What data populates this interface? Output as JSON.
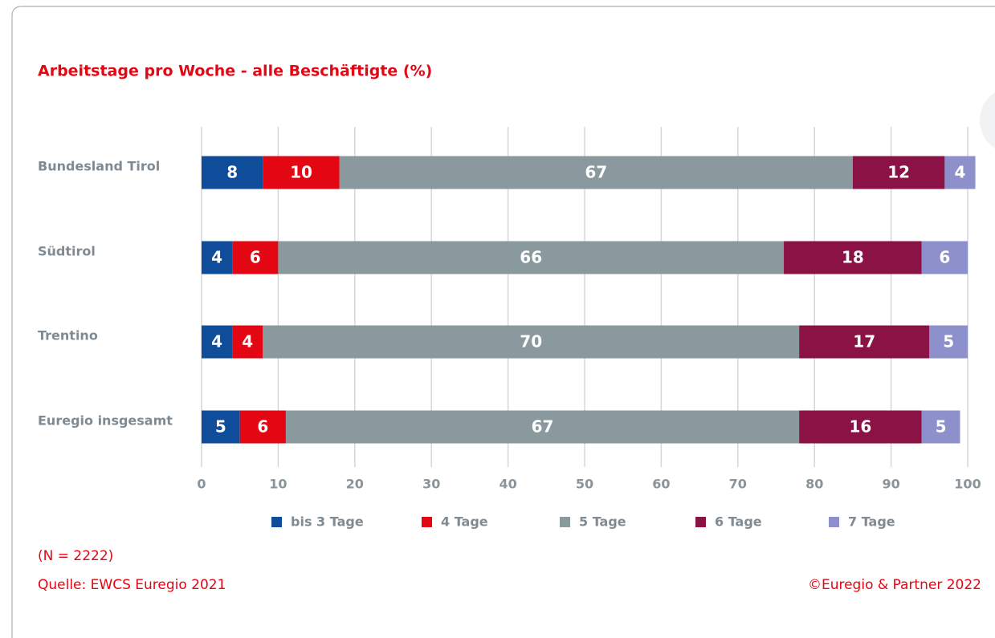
{
  "chart_data": {
    "type": "stacked_bar_horizontal",
    "title": "Arbeitstage pro Woche - alle Beschäftigte (%)",
    "categories": [
      "Bundesland Tirol",
      "Südtirol",
      "Trentino",
      "Euregio insgesamt"
    ],
    "series": [
      {
        "name": "bis 3 Tage",
        "color": "#0f4c9a",
        "values": [
          8,
          4,
          4,
          5
        ]
      },
      {
        "name": "4 Tage",
        "color": "#e30613",
        "values": [
          10,
          6,
          4,
          6
        ]
      },
      {
        "name": "5 Tage",
        "color": "#8a999d",
        "values": [
          67,
          66,
          70,
          67
        ]
      },
      {
        "name": "6 Tage",
        "color": "#8b1245",
        "values": [
          12,
          18,
          17,
          16
        ]
      },
      {
        "name": "7 Tage",
        "color": "#8d90cb",
        "values": [
          4,
          6,
          5,
          5
        ]
      }
    ],
    "xlim": [
      0,
      100
    ],
    "xticks": [
      0,
      10,
      20,
      30,
      40,
      50,
      60,
      70,
      80,
      90,
      100
    ],
    "grid": true,
    "legend": "bottom",
    "notes": [
      "(N = 2222)",
      "Quelle: EWCS Euregio 2021"
    ],
    "copyright": "©Euregio & Partner 2022"
  }
}
